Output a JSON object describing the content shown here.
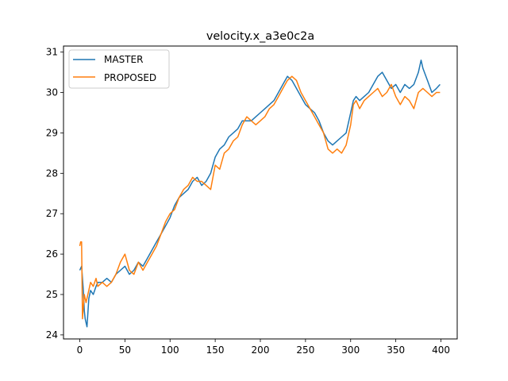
{
  "chart_data": {
    "type": "line",
    "title": "velocity.x_a3e0c2a",
    "xlabel": "",
    "ylabel": "",
    "xlim": [
      -18,
      418
    ],
    "ylim": [
      23.9,
      31.15
    ],
    "xticks": [
      0,
      50,
      100,
      150,
      200,
      250,
      300,
      350,
      400
    ],
    "yticks": [
      24,
      25,
      26,
      27,
      28,
      29,
      30,
      31
    ],
    "grid": false,
    "legend_position": "top-left",
    "series": [
      {
        "name": "MASTER",
        "color": "#1f77b4",
        "x": [
          0,
          2,
          4,
          5,
          6,
          8,
          10,
          12,
          15,
          18,
          20,
          25,
          30,
          35,
          40,
          45,
          50,
          55,
          60,
          65,
          70,
          75,
          80,
          85,
          90,
          95,
          100,
          105,
          110,
          115,
          120,
          125,
          130,
          135,
          140,
          145,
          150,
          155,
          160,
          165,
          170,
          175,
          180,
          185,
          190,
          195,
          200,
          205,
          210,
          215,
          220,
          225,
          230,
          235,
          240,
          245,
          250,
          255,
          260,
          265,
          270,
          275,
          280,
          285,
          290,
          295,
          300,
          303,
          306,
          310,
          315,
          320,
          325,
          330,
          335,
          340,
          345,
          350,
          355,
          360,
          365,
          370,
          375,
          378,
          380,
          385,
          390,
          395,
          399
        ],
        "values": [
          25.6,
          25.7,
          25.1,
          24.6,
          24.4,
          24.2,
          24.9,
          25.1,
          25.0,
          25.2,
          25.3,
          25.3,
          25.4,
          25.3,
          25.5,
          25.6,
          25.7,
          25.5,
          25.6,
          25.8,
          25.7,
          25.9,
          26.1,
          26.3,
          26.5,
          26.7,
          26.9,
          27.2,
          27.4,
          27.5,
          27.6,
          27.8,
          27.9,
          27.7,
          27.8,
          28.0,
          28.4,
          28.6,
          28.7,
          28.9,
          29.0,
          29.1,
          29.3,
          29.3,
          29.3,
          29.4,
          29.5,
          29.6,
          29.7,
          29.8,
          30.0,
          30.2,
          30.4,
          30.3,
          30.1,
          29.9,
          29.7,
          29.6,
          29.5,
          29.3,
          29.0,
          28.8,
          28.7,
          28.8,
          28.9,
          29.0,
          29.5,
          29.8,
          29.9,
          29.8,
          29.9,
          30.0,
          30.2,
          30.4,
          30.5,
          30.3,
          30.1,
          30.2,
          30.0,
          30.2,
          30.1,
          30.2,
          30.5,
          30.8,
          30.6,
          30.3,
          30.0,
          30.1,
          30.2
        ]
      },
      {
        "name": "PROPOSED",
        "color": "#ff7f0e",
        "x": [
          0,
          1,
          2,
          3,
          4,
          5,
          7,
          9,
          12,
          15,
          18,
          20,
          25,
          30,
          35,
          40,
          45,
          50,
          55,
          60,
          65,
          70,
          75,
          80,
          85,
          90,
          95,
          100,
          105,
          110,
          115,
          120,
          125,
          130,
          135,
          140,
          145,
          150,
          155,
          160,
          165,
          170,
          175,
          180,
          185,
          190,
          195,
          200,
          205,
          210,
          215,
          220,
          225,
          230,
          235,
          240,
          245,
          250,
          255,
          260,
          265,
          270,
          275,
          280,
          285,
          290,
          295,
          300,
          303,
          306,
          310,
          315,
          320,
          325,
          330,
          335,
          340,
          345,
          350,
          355,
          360,
          365,
          370,
          375,
          380,
          385,
          390,
          395,
          399
        ],
        "values": [
          26.2,
          26.3,
          26.3,
          24.4,
          24.7,
          25.0,
          24.8,
          25.0,
          25.3,
          25.2,
          25.4,
          25.2,
          25.3,
          25.2,
          25.3,
          25.5,
          25.8,
          26.0,
          25.6,
          25.5,
          25.8,
          25.6,
          25.8,
          26.0,
          26.2,
          26.5,
          26.8,
          27.0,
          27.1,
          27.4,
          27.6,
          27.7,
          27.9,
          27.8,
          27.8,
          27.7,
          27.6,
          28.2,
          28.1,
          28.5,
          28.6,
          28.8,
          28.9,
          29.2,
          29.4,
          29.3,
          29.2,
          29.3,
          29.4,
          29.6,
          29.7,
          29.9,
          30.1,
          30.3,
          30.4,
          30.3,
          30.0,
          29.8,
          29.6,
          29.4,
          29.2,
          29.0,
          28.6,
          28.5,
          28.6,
          28.5,
          28.7,
          29.2,
          29.7,
          29.8,
          29.6,
          29.8,
          29.9,
          30.0,
          30.1,
          29.9,
          30.0,
          30.2,
          29.9,
          29.7,
          29.9,
          29.8,
          29.6,
          30.0,
          30.1,
          30.0,
          29.9,
          30.0,
          30.0
        ]
      }
    ]
  }
}
